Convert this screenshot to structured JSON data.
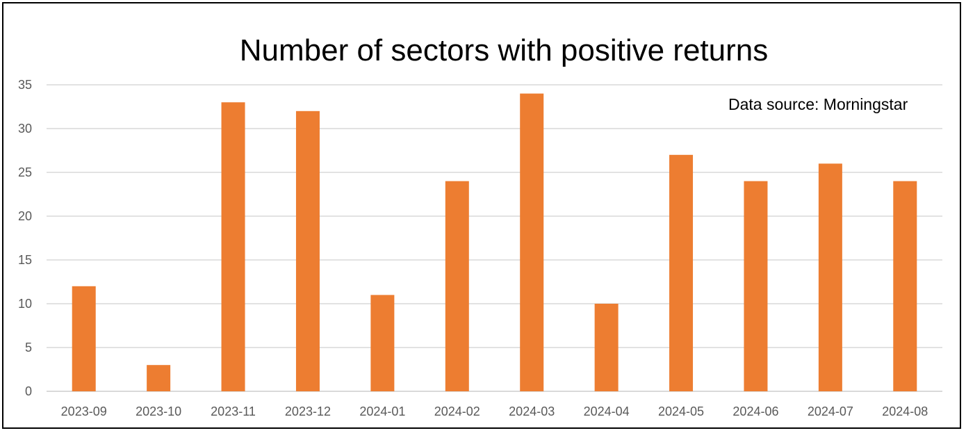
{
  "chart_data": {
    "type": "bar",
    "title": "Number of sectors with positive returns",
    "annotation": "Data source: Morningstar",
    "categories": [
      "2023-09",
      "2023-10",
      "2023-11",
      "2023-12",
      "2024-01",
      "2024-02",
      "2024-03",
      "2024-04",
      "2024-05",
      "2024-06",
      "2024-07",
      "2024-08"
    ],
    "values": [
      12,
      3,
      33,
      32,
      11,
      24,
      34,
      10,
      27,
      24,
      26,
      24
    ],
    "ylim": [
      0,
      35
    ],
    "yticks": [
      "0",
      "5",
      "10",
      "15",
      "20",
      "25",
      "30",
      "35"
    ],
    "xlabel": "",
    "ylabel": "",
    "grid": true,
    "legend": "none",
    "bar_color": "#ED7D31",
    "grid_color": "#D9D9D9",
    "tick_color": "#595959"
  }
}
